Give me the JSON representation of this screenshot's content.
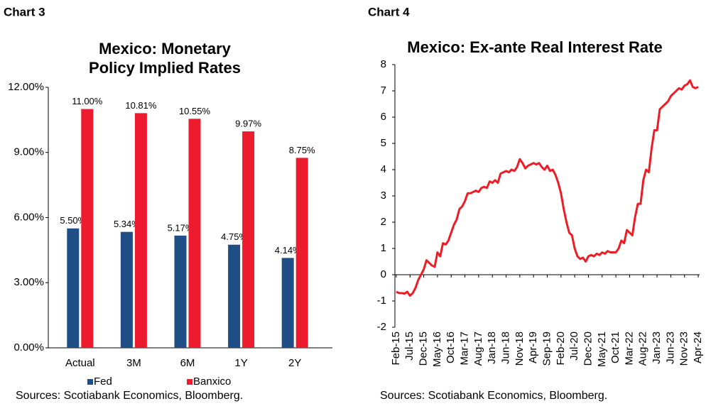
{
  "chart_data": [
    {
      "type": "bar",
      "heading": "Chart 3",
      "title": [
        "Mexico: Monetary",
        "Policy Implied Rates"
      ],
      "source": "Sources: Scotiabank Economics, Bloomberg.",
      "categories": [
        "Actual",
        "3M",
        "6M",
        "1Y",
        "2Y"
      ],
      "series": [
        {
          "name": "Fed",
          "color": "#1f4e86",
          "values": [
            5.5,
            5.34,
            5.17,
            4.75,
            4.14
          ],
          "value_labels": [
            "5.50%",
            "5.34%",
            "5.17%",
            "4.75%",
            "4.14%"
          ]
        },
        {
          "name": "Banxico",
          "color": "#ec1c2e",
          "values": [
            11.0,
            10.81,
            10.55,
            9.97,
            8.75
          ],
          "value_labels": [
            "11.00%",
            "10.81%",
            "10.55%",
            "9.97%",
            "8.75%"
          ]
        }
      ],
      "ylim": [
        0,
        12
      ],
      "yticks": [
        {
          "value": 0,
          "label": "0.00%"
        },
        {
          "value": 3,
          "label": "3.00%"
        },
        {
          "value": 6,
          "label": "6.00%"
        },
        {
          "value": 9,
          "label": "9.00%"
        },
        {
          "value": 12,
          "label": "12.00%"
        }
      ],
      "grid": false,
      "legend": "bottom"
    },
    {
      "type": "line",
      "heading": "Chart 4",
      "title": [
        "Mexico: Ex-ante Real Interest Rate"
      ],
      "source": "Sources: Scotiabank Economics, Bloomberg.",
      "categories": [
        "Feb-15",
        null,
        null,
        null,
        null,
        "Jul-15",
        null,
        null,
        null,
        null,
        "Dec-15",
        null,
        null,
        null,
        null,
        "May-16",
        null,
        null,
        null,
        null,
        "Oct-16",
        null,
        null,
        null,
        null,
        "Mar-17",
        null,
        null,
        null,
        null,
        "Aug-17",
        null,
        null,
        null,
        null,
        "Jan-18",
        null,
        null,
        null,
        null,
        "Jun-18",
        null,
        null,
        null,
        null,
        "Nov-18",
        null,
        null,
        null,
        null,
        "Apr-19",
        null,
        null,
        null,
        null,
        "Sep-19",
        null,
        null,
        null,
        null,
        "Feb-20",
        null,
        null,
        null,
        null,
        "Jul-20",
        null,
        null,
        null,
        null,
        "Dec-20",
        null,
        null,
        null,
        null,
        "May-21",
        null,
        null,
        null,
        null,
        "Oct-21",
        null,
        null,
        null,
        null,
        "Mar-22",
        null,
        null,
        null,
        null,
        "Aug-22",
        null,
        null,
        null,
        null,
        "Jan-23",
        null,
        null,
        null,
        null,
        "Jun-23",
        null,
        null,
        null,
        null,
        "Nov-23",
        null,
        null,
        null,
        null,
        "Apr-24"
      ],
      "values": [
        -0.65,
        -0.7,
        -0.7,
        -0.72,
        -0.65,
        -0.8,
        -0.7,
        -0.5,
        -0.2,
        0.0,
        0.2,
        0.55,
        0.45,
        0.35,
        0.3,
        0.85,
        0.7,
        1.2,
        1.15,
        1.3,
        1.6,
        1.9,
        2.1,
        2.5,
        2.6,
        2.8,
        3.1,
        3.1,
        3.15,
        3.2,
        3.15,
        3.3,
        3.35,
        3.3,
        3.55,
        3.5,
        3.6,
        3.5,
        3.85,
        3.9,
        3.95,
        3.9,
        4.0,
        3.95,
        4.1,
        4.4,
        4.25,
        4.05,
        4.15,
        4.2,
        4.25,
        4.2,
        4.25,
        4.1,
        4.0,
        4.15,
        3.95,
        4.0,
        3.8,
        3.5,
        3.1,
        2.5,
        2.0,
        1.6,
        1.5,
        1.0,
        0.7,
        0.6,
        0.65,
        0.5,
        0.7,
        0.75,
        0.7,
        0.8,
        0.75,
        0.85,
        0.8,
        0.9,
        0.85,
        0.85,
        0.85,
        1.0,
        1.3,
        1.2,
        1.7,
        1.6,
        1.5,
        2.2,
        2.7,
        2.7,
        3.6,
        4.0,
        3.9,
        4.8,
        5.5,
        5.5,
        6.3,
        6.4,
        6.5,
        6.6,
        6.8,
        6.9,
        7.0,
        7.1,
        7.05,
        7.2,
        7.25,
        7.4,
        7.15,
        7.1,
        7.15
      ],
      "color": "#ee1c25",
      "ylim": [
        -2,
        8
      ],
      "yticks": [
        -2,
        -1,
        0,
        1,
        2,
        3,
        4,
        5,
        6,
        7,
        8
      ],
      "grid": false
    }
  ]
}
